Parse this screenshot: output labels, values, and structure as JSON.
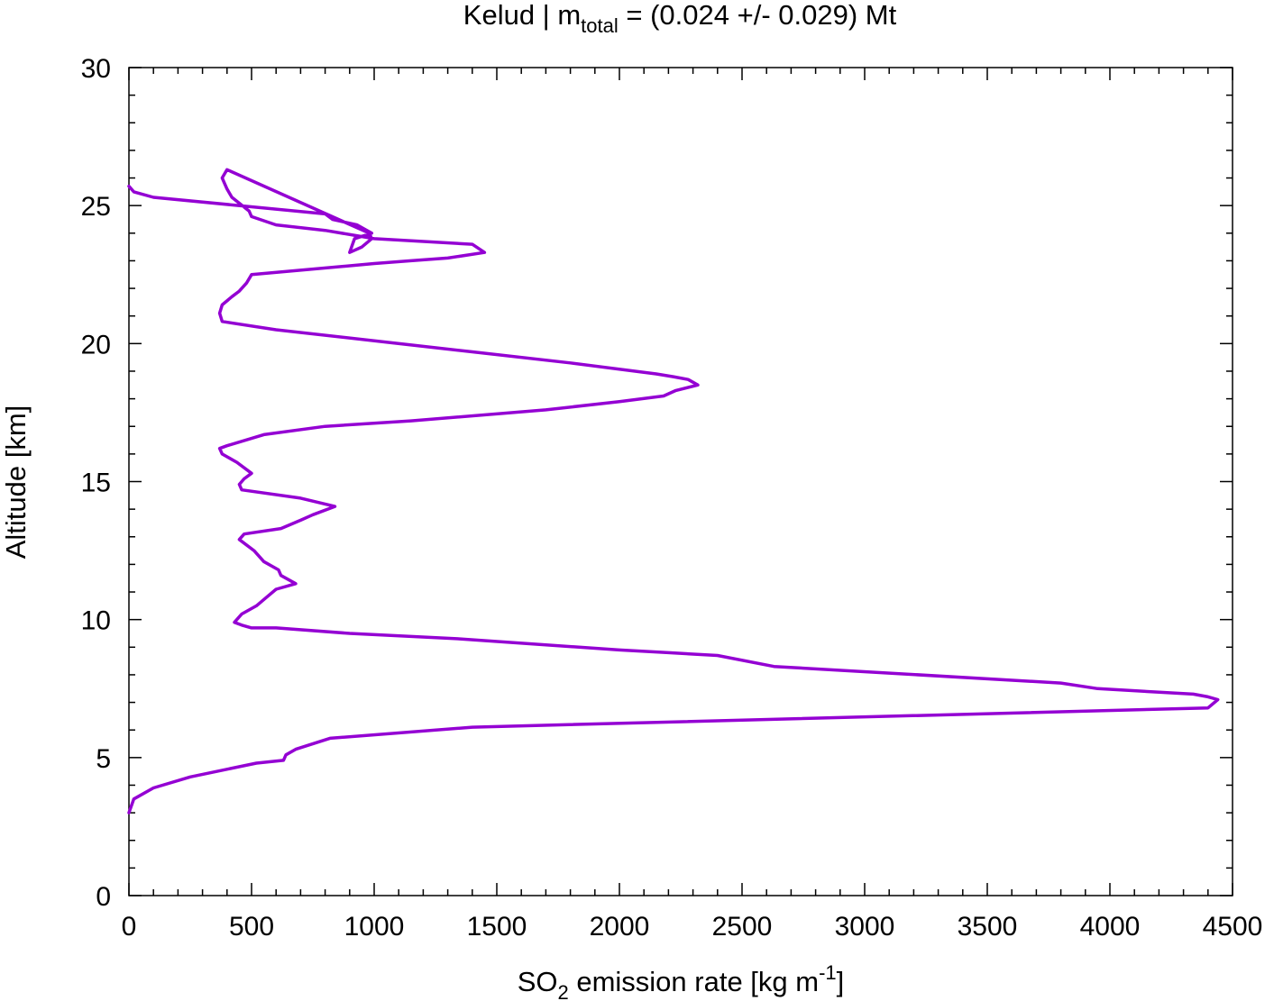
{
  "chart_data": {
    "type": "line",
    "title": {
      "prefix": "Kelud | m",
      "subscript": "total",
      "suffix": " = (0.024 +/- 0.029) Mt"
    },
    "xlabel": {
      "prefix": "SO",
      "subscript": "2",
      "middle": " emission rate [kg m",
      "superscript": "-1",
      "suffix": "]"
    },
    "ylabel": "Altitude [km]",
    "xlim": [
      0,
      4500
    ],
    "ylim": [
      0,
      30
    ],
    "x_ticks": [
      0,
      500,
      1000,
      1500,
      2000,
      2500,
      3000,
      3500,
      4000,
      4500
    ],
    "y_ticks": [
      0,
      5,
      10,
      15,
      20,
      25,
      30
    ],
    "x_tick_labels": [
      "0",
      "500",
      "1000",
      "1500",
      "2000",
      "2500",
      "3000",
      "3500",
      "4000",
      "4500"
    ],
    "y_tick_labels": [
      "0",
      "5",
      "10",
      "15",
      "20",
      "25",
      "30"
    ],
    "grid": false,
    "line_color": "#9400d3",
    "series": [
      {
        "x": [
          0,
          20,
          100,
          250,
          520,
          630,
          640,
          680,
          820,
          1400,
          4400,
          4440,
          4400,
          4340,
          3950,
          3800,
          2630,
          2400,
          2200,
          2000,
          1350,
          900,
          600,
          500,
          460,
          430,
          460,
          520,
          560,
          600,
          680,
          620,
          610,
          550,
          510,
          450,
          470,
          620,
          700,
          750,
          840,
          700,
          460,
          450,
          470,
          500,
          440,
          380,
          370,
          400,
          550,
          800,
          1150,
          1700,
          2000,
          2180,
          2230,
          2320,
          2280,
          2220,
          2150,
          1800,
          1400,
          600,
          380,
          370,
          380,
          420,
          450,
          480,
          500,
          1000,
          1150,
          1300,
          1450,
          1400,
          1000,
          800,
          600,
          500,
          490,
          420,
          400,
          390,
          380,
          400,
          980,
          990,
          950,
          900,
          920,
          990,
          930,
          830,
          800,
          100,
          20,
          0
        ],
        "y": [
          3.0,
          3.5,
          3.9,
          4.3,
          4.8,
          4.9,
          5.1,
          5.3,
          5.7,
          6.1,
          6.8,
          7.1,
          7.2,
          7.3,
          7.5,
          7.7,
          8.3,
          8.7,
          8.8,
          8.9,
          9.3,
          9.5,
          9.7,
          9.7,
          9.8,
          9.9,
          10.2,
          10.5,
          10.8,
          11.1,
          11.3,
          11.6,
          11.8,
          12.1,
          12.5,
          12.9,
          13.1,
          13.3,
          13.6,
          13.8,
          14.1,
          14.4,
          14.7,
          14.9,
          15.1,
          15.3,
          15.7,
          16.0,
          16.2,
          16.3,
          16.7,
          17.0,
          17.2,
          17.6,
          17.9,
          18.1,
          18.3,
          18.5,
          18.7,
          18.8,
          18.9,
          19.3,
          19.7,
          20.5,
          20.8,
          21.1,
          21.4,
          21.7,
          21.9,
          22.2,
          22.5,
          22.9,
          23.0,
          23.1,
          23.3,
          23.6,
          23.8,
          24.1,
          24.3,
          24.6,
          24.8,
          25.3,
          25.6,
          25.8,
          26.0,
          26.3,
          24.0,
          23.8,
          23.5,
          23.3,
          23.8,
          24.0,
          24.3,
          24.5,
          24.7,
          25.3,
          25.5,
          25.7
        ]
      }
    ]
  }
}
